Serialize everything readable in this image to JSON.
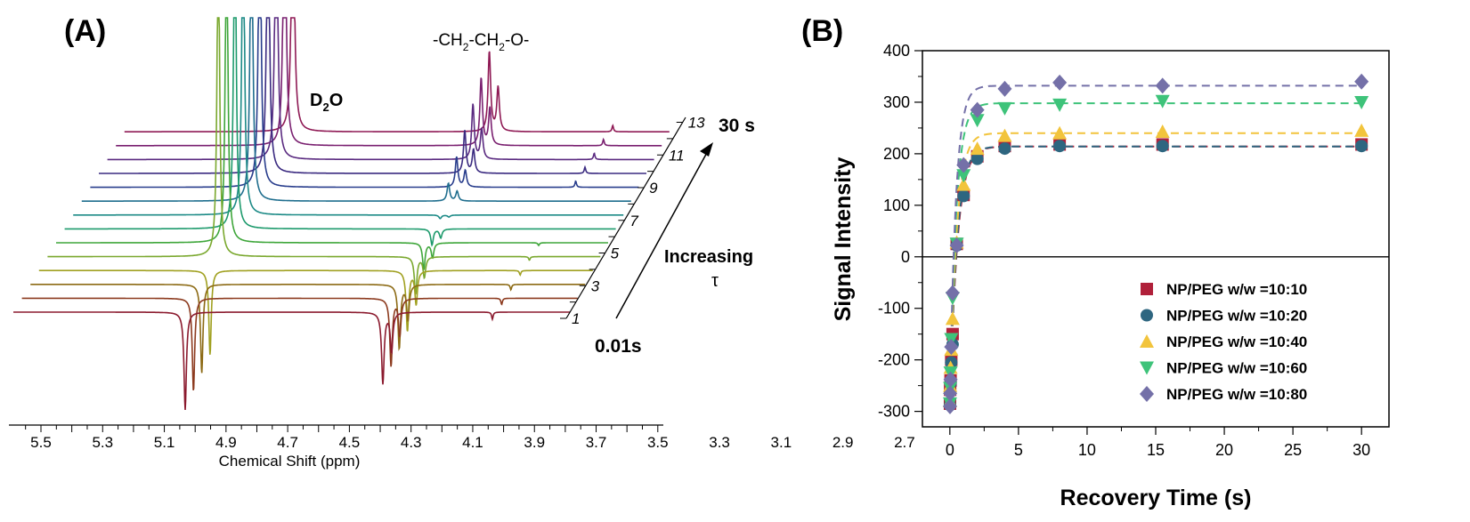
{
  "chart_data": [
    {
      "panel": "(A)",
      "type": "line",
      "xlabel": "Chemical Shift (ppm)",
      "x_ticks": [
        "5.5",
        "5.3",
        "5.1",
        "4.9",
        "4.7",
        "4.5",
        "4.3",
        "4.1",
        "3.9",
        "3.7",
        "3.5",
        "3.3",
        "3.1",
        "2.9",
        "2.7"
      ],
      "peak_labels": {
        "water": "D",
        "water_sub": "2",
        "water_end": "O",
        "peg_parts": [
          "-CH",
          "2",
          "-CH",
          "2",
          "-O-"
        ]
      },
      "spectrum_index_labels": [
        "1",
        "3",
        "5",
        "7",
        "9",
        "11",
        "13"
      ],
      "time_start": "0.01s",
      "time_end": "30 s",
      "arrow_label": [
        "Increasing",
        "τ"
      ],
      "series_colors": [
        "#8b1a2e",
        "#8c3a1e",
        "#8c6a14",
        "#a0a020",
        "#7aa82e",
        "#3ea63a",
        "#1d9a6c",
        "#1c8a86",
        "#1f6e8e",
        "#283d8c",
        "#3a2a80",
        "#5a2a80",
        "#7a2070",
        "#8f1a55"
      ]
    },
    {
      "panel": "(B)",
      "type": "scatter",
      "xlabel": "Recovery Time (s)",
      "ylabel": "Signal Intensity",
      "xlim": [
        -2,
        32
      ],
      "ylim": [
        -330,
        400
      ],
      "x_ticks": [
        0,
        5,
        10,
        15,
        20,
        25,
        30
      ],
      "y_ticks": [
        400,
        300,
        200,
        100,
        0,
        -100,
        -200,
        -300
      ],
      "x": [
        0.01,
        0.02,
        0.05,
        0.1,
        0.2,
        0.5,
        1.0,
        2.0,
        4.0,
        8.0,
        15.5,
        30.0
      ],
      "series": [
        {
          "name": "NP/PEG w/w =10:10",
          "marker": "square",
          "color": "#b0203a",
          "values": [
            -285,
            -258,
            -240,
            -200,
            -150,
            25,
            120,
            195,
            215,
            218,
            218,
            218
          ]
        },
        {
          "name": "NP/PEG w/w =10:20",
          "marker": "circle",
          "color": "#2e6680",
          "values": [
            -288,
            -262,
            -245,
            -205,
            -170,
            22,
            118,
            190,
            210,
            215,
            215,
            215
          ]
        },
        {
          "name": "NP/PEG w/w =10:40",
          "marker": "triangle-up",
          "color": "#f2c43c",
          "values": [
            -280,
            -250,
            -215,
            -180,
            -120,
            28,
            140,
            210,
            235,
            240,
            243,
            245
          ]
        },
        {
          "name": "NP/PEG w/w =10:60",
          "marker": "triangle-down",
          "color": "#3ec37a",
          "values": [
            -285,
            -255,
            -225,
            -160,
            -80,
            25,
            158,
            265,
            288,
            295,
            302,
            300
          ]
        },
        {
          "name": "NP/PEG w/w =10:80",
          "marker": "diamond",
          "color": "#7470a8",
          "values": [
            -290,
            -265,
            -238,
            -175,
            -70,
            22,
            178,
            285,
            326,
            338,
            332,
            340
          ]
        }
      ],
      "fit_plateaus": [
        214,
        214,
        240,
        298,
        332
      ]
    }
  ]
}
